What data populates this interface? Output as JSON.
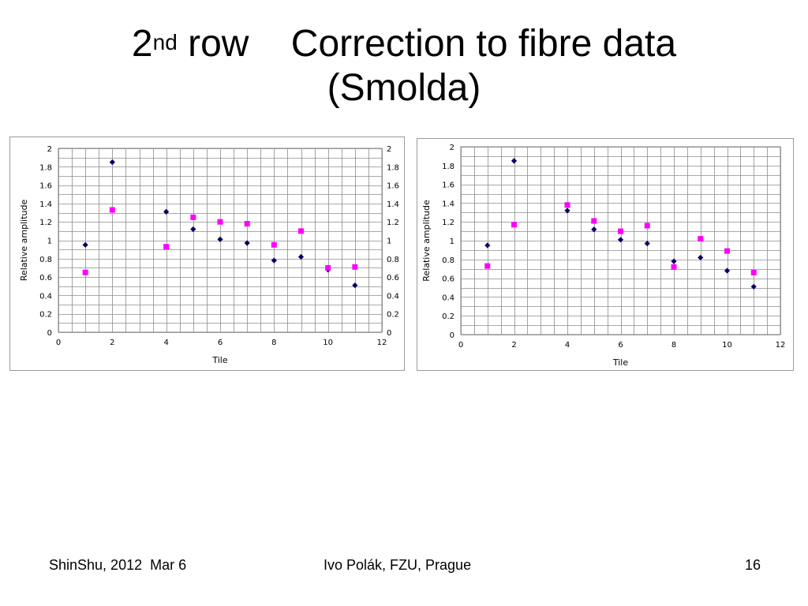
{
  "slide": {
    "title_num": "2",
    "title_sup": "nd",
    "title_rest": " row    Correction to fibre data",
    "title_line2": "(Smolda)"
  },
  "footer": {
    "left": "ShinShu, 2012  Mar 6",
    "center": "Ivo Polák, FZU, Prague",
    "right": "16"
  },
  "colors": {
    "series_diamond": "#000066",
    "series_square": "#ff00ff",
    "grid": "#8c8c8c"
  },
  "chart_data": [
    {
      "type": "scatter",
      "xlabel": "Tile",
      "ylabel": "Relative amplitude",
      "xlim": [
        0,
        12
      ],
      "ylim": [
        0,
        2
      ],
      "x_ticks": [
        "0",
        "2",
        "4",
        "6",
        "8",
        "10",
        "12"
      ],
      "y_ticks": [
        "0",
        "0.2",
        "0.4",
        "0.6",
        "0.8",
        "1",
        "1.2",
        "1.4",
        "1.6",
        "1.8",
        "2"
      ],
      "secondary_y_axis": true,
      "grid": true,
      "series": [
        {
          "marker": "diamond",
          "color": "#000066",
          "points": [
            [
              1,
              0.95
            ],
            [
              2,
              1.85
            ],
            [
              4,
              1.31
            ],
            [
              5,
              1.12
            ],
            [
              6,
              1.01
            ],
            [
              7,
              0.97
            ],
            [
              8,
              0.78
            ],
            [
              9,
              0.82
            ],
            [
              10,
              0.68
            ],
            [
              11,
              0.51
            ]
          ]
        },
        {
          "marker": "square",
          "color": "#ff00ff",
          "points": [
            [
              1,
              0.65
            ],
            [
              2,
              1.33
            ],
            [
              4,
              0.93
            ],
            [
              5,
              1.25
            ],
            [
              6,
              1.2
            ],
            [
              7,
              1.18
            ],
            [
              8,
              0.95
            ],
            [
              9,
              1.1
            ],
            [
              10,
              0.7
            ],
            [
              11,
              0.71
            ]
          ]
        }
      ]
    },
    {
      "type": "scatter",
      "xlabel": "Tile",
      "ylabel": "Relative amplitude",
      "xlim": [
        0,
        12
      ],
      "ylim": [
        0,
        2
      ],
      "x_ticks": [
        "0",
        "2",
        "4",
        "6",
        "8",
        "10",
        "12"
      ],
      "y_ticks": [
        "0",
        "0.2",
        "0.4",
        "0.6",
        "0.8",
        "1",
        "1.2",
        "1.4",
        "1.6",
        "1.8",
        "2"
      ],
      "secondary_y_axis": false,
      "grid": true,
      "series": [
        {
          "marker": "diamond",
          "color": "#000066",
          "points": [
            [
              1,
              0.95
            ],
            [
              2,
              1.85
            ],
            [
              4,
              1.32
            ],
            [
              5,
              1.12
            ],
            [
              6,
              1.01
            ],
            [
              7,
              0.97
            ],
            [
              8,
              0.78
            ],
            [
              9,
              0.82
            ],
            [
              10,
              0.68
            ],
            [
              11,
              0.51
            ]
          ]
        },
        {
          "marker": "square",
          "color": "#ff00ff",
          "points": [
            [
              1,
              0.73
            ],
            [
              2,
              1.17
            ],
            [
              4,
              1.38
            ],
            [
              5,
              1.21
            ],
            [
              6,
              1.1
            ],
            [
              7,
              1.16
            ],
            [
              8,
              0.72
            ],
            [
              9,
              1.02
            ],
            [
              10,
              0.89
            ],
            [
              11,
              0.66
            ]
          ]
        }
      ]
    }
  ]
}
